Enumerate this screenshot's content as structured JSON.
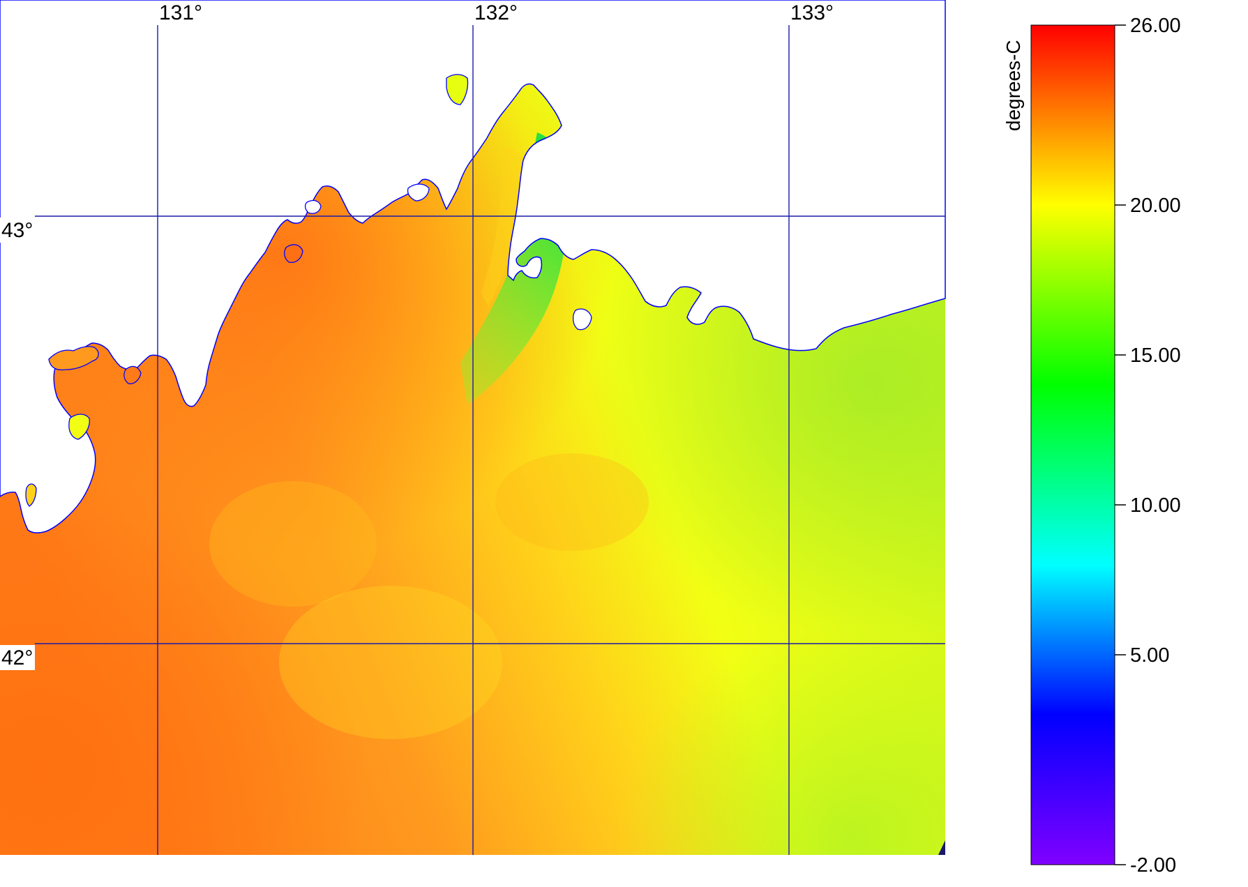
{
  "map": {
    "longitude_labels": [
      "131°",
      "132°",
      "133°"
    ],
    "latitude_labels": [
      "43°",
      "42°"
    ],
    "grid_color": "#1a1aa8",
    "coastline_color": "#0000ff",
    "land_color": "#ffffff",
    "sst_field": {
      "description_colors": [
        "#ff6a10",
        "#ffa020",
        "#ffd418",
        "#e6ff10",
        "#bff01a",
        "#30e030"
      ]
    }
  },
  "colorbar": {
    "unit_label": "degrees-C",
    "ticks": [
      "26.00",
      "20.00",
      "15.00",
      "10.00",
      "5.00",
      "-2.00"
    ],
    "tick_values": [
      26,
      20,
      15,
      10,
      5,
      -2
    ],
    "min": -2,
    "max": 26,
    "gradient": [
      {
        "v": 26,
        "color": "#ff0000"
      },
      {
        "v": 23,
        "color": "#ff8000"
      },
      {
        "v": 20,
        "color": "#ffff00"
      },
      {
        "v": 14,
        "color": "#00ff00"
      },
      {
        "v": 8,
        "color": "#00ffff"
      },
      {
        "v": 3,
        "color": "#0000ff"
      },
      {
        "v": -2,
        "color": "#8000ff"
      }
    ]
  }
}
